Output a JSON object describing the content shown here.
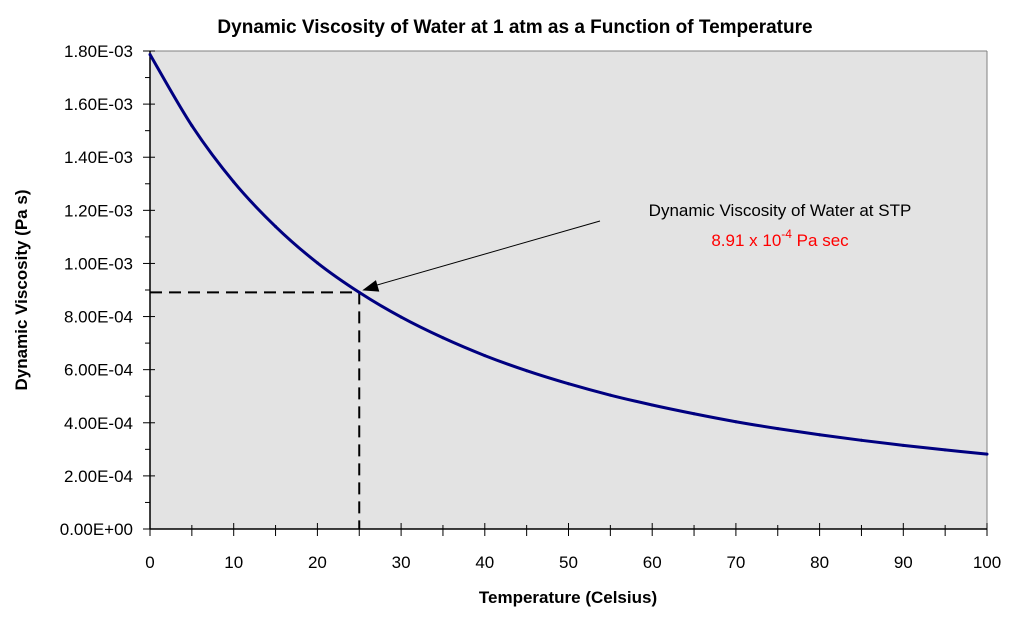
{
  "chart_data": {
    "type": "line",
    "title": "Dynamic Viscosity of Water at 1 atm as a Function of Temperature",
    "xlabel": "Temperature (Celsius)",
    "ylabel": "Dynamic Viscosity (Pa  s)",
    "xlim": [
      0,
      100
    ],
    "ylim": [
      0,
      0.0018
    ],
    "x_ticks": [
      0,
      10,
      20,
      30,
      40,
      50,
      60,
      70,
      80,
      90,
      100
    ],
    "x_tick_labels": [
      "0",
      "10",
      "20",
      "30",
      "40",
      "50",
      "60",
      "70",
      "80",
      "90",
      "100"
    ],
    "x_minor_step": 5,
    "y_ticks": [
      0,
      0.0002,
      0.0004,
      0.0006,
      0.0008,
      0.001,
      0.0012,
      0.0014,
      0.0016,
      0.0018
    ],
    "y_tick_labels": [
      "0.00E+00",
      "2.00E-04",
      "4.00E-04",
      "6.00E-04",
      "8.00E-04",
      "1.00E-03",
      "1.20E-03",
      "1.40E-03",
      "1.60E-03",
      "1.80E-03"
    ],
    "y_minor_step": 0.0001,
    "grid": false,
    "legend": "none",
    "series": [
      {
        "name": "Dynamic Viscosity",
        "color": "#000080",
        "x": [
          0,
          5,
          10,
          15,
          20,
          25,
          30,
          35,
          40,
          45,
          50,
          55,
          60,
          65,
          70,
          75,
          80,
          85,
          90,
          95,
          100
        ],
        "y": [
          0.001787,
          0.001519,
          0.001307,
          0.001139,
          0.001002,
          0.000891,
          0.000798,
          0.00072,
          0.000653,
          0.000596,
          0.000547,
          0.000504,
          0.000467,
          0.000434,
          0.000404,
          0.000378,
          0.000355,
          0.000334,
          0.000315,
          0.000298,
          0.000282
        ]
      }
    ],
    "reference_point": {
      "x": 25,
      "y": 0.000891
    },
    "annotation": {
      "line1": "Dynamic Viscosity of Water at STP",
      "value_prefix": "8.91 x 10",
      "value_exponent": "-4",
      "value_suffix": " Pa sec",
      "value_color": "#ff0000"
    },
    "plot_background": "#e3e3e3"
  }
}
